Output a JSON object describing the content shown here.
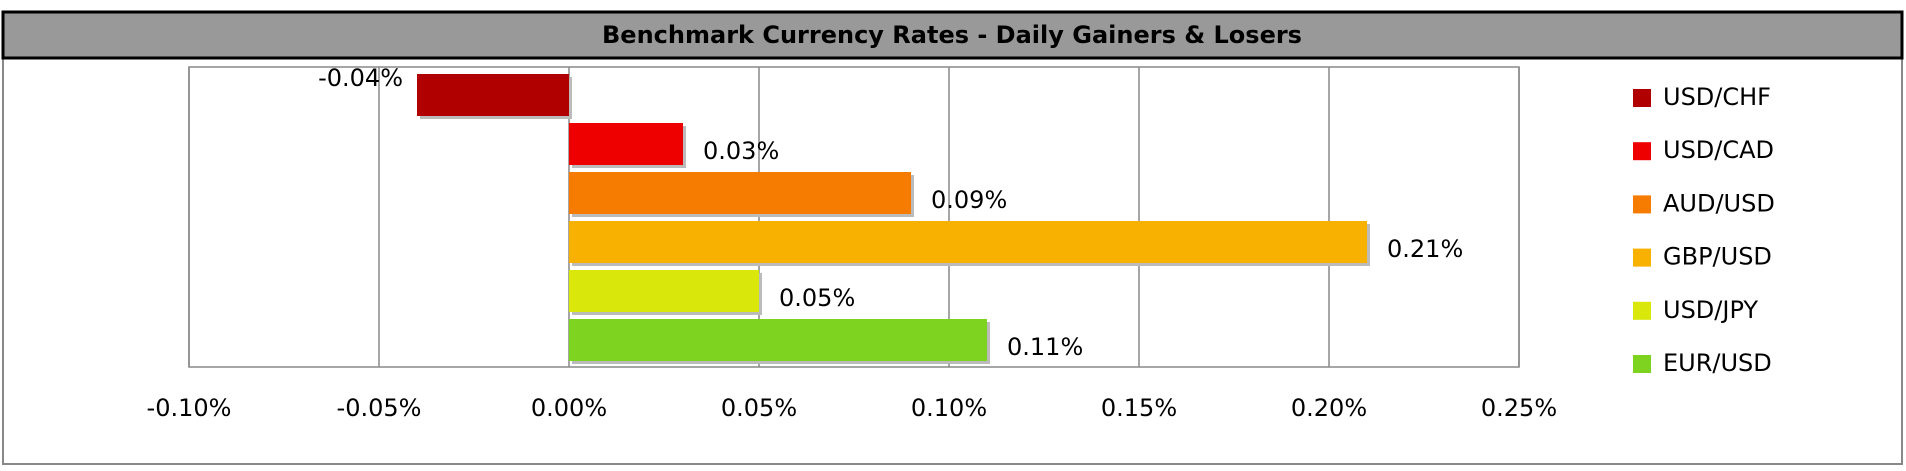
{
  "chart_data": {
    "type": "bar",
    "orientation": "horizontal",
    "title": "Benchmark Currency Rates - Daily Gainers & Losers",
    "series": [
      {
        "name": "USD/CHF",
        "color": "#b00000",
        "values": [
          -0.04
        ],
        "value_labels": [
          "-0.04%"
        ]
      },
      {
        "name": "USD/CAD",
        "color": "#ee0000",
        "values": [
          0.03
        ],
        "value_labels": [
          "0.03%"
        ]
      },
      {
        "name": "AUD/USD",
        "color": "#f57c00",
        "values": [
          0.09
        ],
        "value_labels": [
          "0.09%"
        ]
      },
      {
        "name": "GBP/USD",
        "color": "#f8b100",
        "values": [
          0.21
        ],
        "value_labels": [
          "0.21%"
        ]
      },
      {
        "name": "USD/JPY",
        "color": "#d9e80a",
        "values": [
          0.05
        ],
        "value_labels": [
          "0.05%"
        ]
      },
      {
        "name": "EUR/USD",
        "color": "#7ed321",
        "values": [
          0.11
        ],
        "value_labels": [
          "0.11%"
        ]
      }
    ],
    "xlim": [
      -0.1,
      0.25
    ],
    "xticks": [
      {
        "value": -0.1,
        "label": "-0.10%"
      },
      {
        "value": -0.05,
        "label": "-0.05%"
      },
      {
        "value": 0,
        "label": "0.00%"
      },
      {
        "value": 0.05,
        "label": "0.05%"
      },
      {
        "value": 0.1,
        "label": "0.10%"
      },
      {
        "value": 0.15,
        "label": "0.15%"
      },
      {
        "value": 0.2,
        "label": "0.20%"
      },
      {
        "value": 0.25,
        "label": "0.25%"
      }
    ],
    "grid": true,
    "legend": "right"
  }
}
